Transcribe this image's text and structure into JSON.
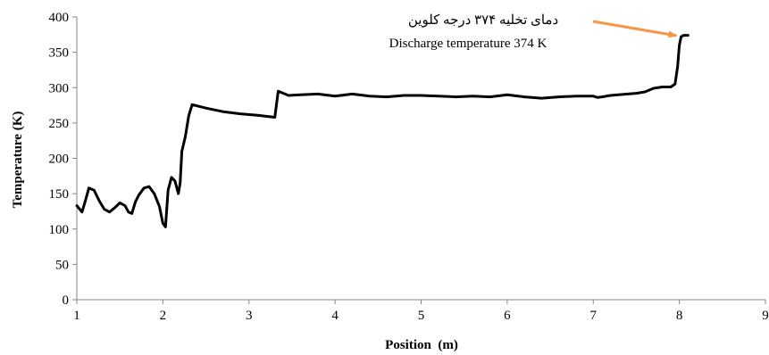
{
  "chart_data": {
    "type": "line",
    "xlabel": "Position  (m)",
    "ylabel": "Temperature (K)",
    "xlim": [
      1,
      9
    ],
    "ylim": [
      0,
      400
    ],
    "x_ticks": [
      1,
      2,
      3,
      4,
      5,
      6,
      7,
      8,
      9
    ],
    "y_ticks": [
      0,
      50,
      100,
      150,
      200,
      250,
      300,
      350,
      400
    ],
    "grid": false,
    "legend": "none",
    "annotation": {
      "line1": "دمای تخلیه ۳۷۴ درجه کلوین",
      "line2": "Discharge temperature 374 K",
      "arrow_color": "#F79646",
      "target": [
        8.05,
        370
      ]
    },
    "series": [
      {
        "color": "#000000",
        "x": [
          1.0,
          1.06,
          1.1,
          1.14,
          1.2,
          1.26,
          1.32,
          1.38,
          1.44,
          1.5,
          1.56,
          1.6,
          1.64,
          1.68,
          1.72,
          1.78,
          1.84,
          1.9,
          1.96,
          2.0,
          2.03,
          2.06,
          2.1,
          2.14,
          2.18,
          2.2,
          2.22,
          2.26,
          2.3,
          2.34,
          2.5,
          2.7,
          2.9,
          3.1,
          3.3,
          3.34,
          3.4,
          3.46,
          3.6,
          3.8,
          4.0,
          4.2,
          4.4,
          4.6,
          4.8,
          5.0,
          5.2,
          5.4,
          5.6,
          5.8,
          6.0,
          6.2,
          6.4,
          6.6,
          6.8,
          7.0,
          7.05,
          7.1,
          7.2,
          7.4,
          7.5,
          7.6,
          7.7,
          7.8,
          7.9,
          7.95,
          7.98,
          8.0,
          8.02,
          8.05,
          8.1
        ],
        "values": [
          133,
          124,
          140,
          158,
          155,
          140,
          128,
          124,
          130,
          137,
          133,
          124,
          122,
          138,
          148,
          158,
          160,
          150,
          132,
          108,
          103,
          155,
          173,
          168,
          150,
          165,
          210,
          230,
          260,
          276,
          271,
          266,
          263,
          261,
          258,
          295,
          292,
          289,
          290,
          291,
          288,
          291,
          288,
          287,
          289,
          289,
          288,
          287,
          288,
          287,
          290,
          287,
          285,
          287,
          288,
          288,
          286,
          287,
          289,
          291,
          292,
          294,
          299,
          301,
          301,
          305,
          330,
          360,
          372,
          374,
          374
        ]
      }
    ]
  }
}
